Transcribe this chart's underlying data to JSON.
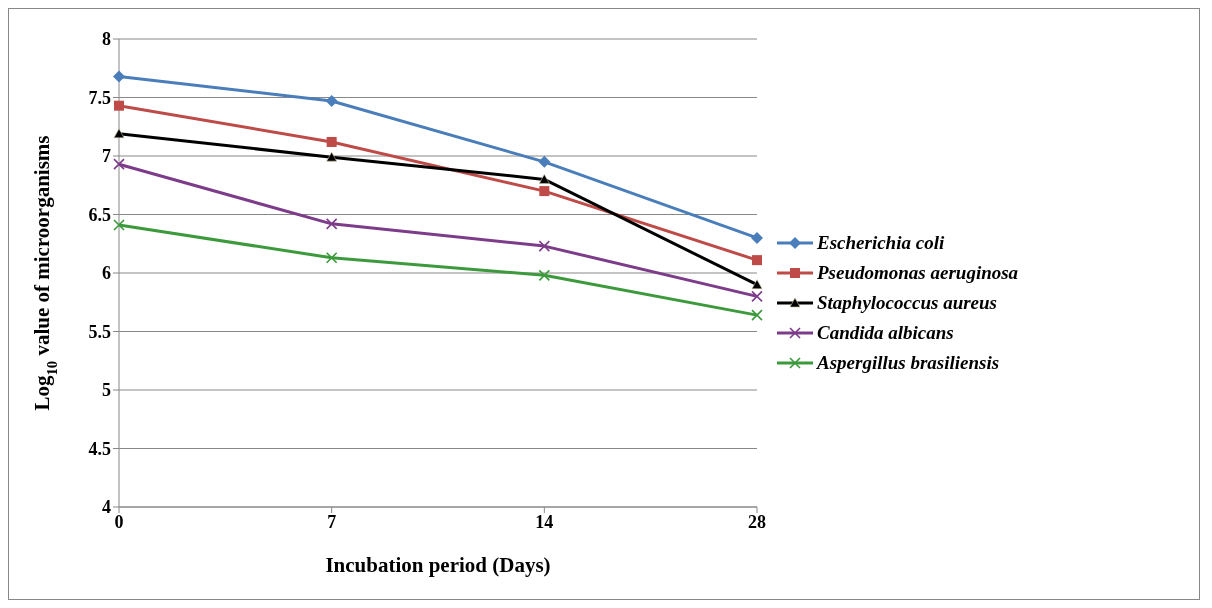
{
  "chart_data": {
    "type": "line",
    "xlabel": "Incubation period (Days)",
    "ylabel": "Log$_{10}$ value of microorganisms",
    "categories": [
      "0",
      "7",
      "14",
      "28"
    ],
    "series": [
      {
        "name": "Escherichia coli",
        "color": "#4a7ebb",
        "marker": "diamond",
        "values": [
          7.68,
          7.47,
          6.95,
          6.3
        ]
      },
      {
        "name": "Pseudomonas aeruginosa",
        "color": "#be4b48",
        "marker": "square",
        "values": [
          7.43,
          7.12,
          6.7,
          6.11
        ]
      },
      {
        "name": "Staphylococcus aureus",
        "color": "#000000",
        "marker": "triangle",
        "values": [
          7.19,
          6.99,
          6.8,
          5.9
        ]
      },
      {
        "name": "Candida albicans",
        "color": "#7d3c8a",
        "marker": "cross",
        "values": [
          6.93,
          6.42,
          6.23,
          5.8
        ]
      },
      {
        "name": "Aspergillus brasiliensis",
        "color": "#3c9a3c",
        "marker": "cross",
        "values": [
          6.41,
          6.13,
          5.98,
          5.64
        ]
      }
    ],
    "ylim": [
      4,
      8
    ],
    "yticks": [
      4,
      4.5,
      5,
      5.5,
      6,
      6.5,
      7,
      7.5,
      8
    ],
    "grid": "y",
    "legend": "right",
    "line_style": "solid"
  }
}
